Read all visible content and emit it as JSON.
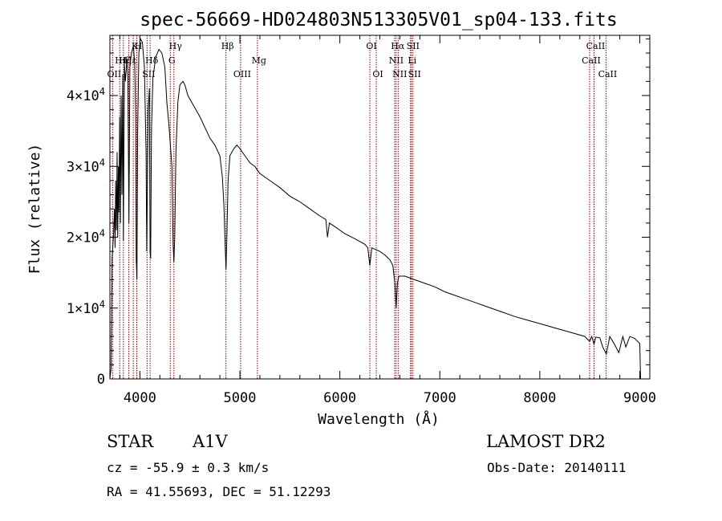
{
  "chart_data": {
    "type": "line",
    "title": "spec-56669-HD024803N513305V01_sp04-133.fits",
    "xlabel": "Wavelength (Å)",
    "ylabel": "Flux (relative)",
    "xlim": [
      3700,
      9100
    ],
    "ylim": [
      0,
      48500
    ],
    "x_ticks": [
      4000,
      5000,
      6000,
      7000,
      8000,
      9000
    ],
    "y_ticks": [
      {
        "value": 0,
        "mantissa": "0",
        "exp": ""
      },
      {
        "value": 10000,
        "mantissa": "1×10",
        "exp": "4"
      },
      {
        "value": 20000,
        "mantissa": "2×10",
        "exp": "4"
      },
      {
        "value": 30000,
        "mantissa": "3×10",
        "exp": "4"
      },
      {
        "value": 40000,
        "mantissa": "4×10",
        "exp": "4"
      }
    ],
    "grid": false,
    "series": [
      {
        "values": [
          [
            3700,
            0
          ],
          [
            3712,
            1500
          ],
          [
            3722,
            17000
          ],
          [
            3735,
            20000
          ],
          [
            3745,
            24000
          ],
          [
            3752,
            18500
          ],
          [
            3758,
            28000
          ],
          [
            3765,
            21000
          ],
          [
            3772,
            32000
          ],
          [
            3778,
            20000
          ],
          [
            3785,
            30000
          ],
          [
            3790,
            23500
          ],
          [
            3798,
            37000
          ],
          [
            3805,
            22000
          ],
          [
            3812,
            40000
          ],
          [
            3820,
            26000
          ],
          [
            3828,
            43000
          ],
          [
            3835,
            19500
          ],
          [
            3845,
            44500
          ],
          [
            3855,
            42000
          ],
          [
            3870,
            45000
          ],
          [
            3880,
            43000
          ],
          [
            3890,
            22000
          ],
          [
            3900,
            44000
          ],
          [
            3915,
            46000
          ],
          [
            3935,
            47000
          ],
          [
            3948,
            44500
          ],
          [
            3958,
            37000
          ],
          [
            3963,
            17000
          ],
          [
            3970,
            14000
          ],
          [
            3978,
            35000
          ],
          [
            3990,
            46000
          ],
          [
            4005,
            48000
          ],
          [
            4025,
            47500
          ],
          [
            4045,
            44000
          ],
          [
            4062,
            32000
          ],
          [
            4068,
            18000
          ],
          [
            4074,
            26000
          ],
          [
            4082,
            38000
          ],
          [
            4095,
            41000
          ],
          [
            4102,
            18000
          ],
          [
            4108,
            17000
          ],
          [
            4116,
            35000
          ],
          [
            4130,
            42500
          ],
          [
            4160,
            45500
          ],
          [
            4190,
            46500
          ],
          [
            4220,
            46000
          ],
          [
            4250,
            44000
          ],
          [
            4270,
            39000
          ],
          [
            4290,
            36000
          ],
          [
            4320,
            30000
          ],
          [
            4332,
            19000
          ],
          [
            4340,
            16500
          ],
          [
            4348,
            20000
          ],
          [
            4360,
            32000
          ],
          [
            4380,
            39000
          ],
          [
            4400,
            41500
          ],
          [
            4430,
            42000
          ],
          [
            4450,
            41500
          ],
          [
            4480,
            40000
          ],
          [
            4520,
            39000
          ],
          [
            4560,
            38000
          ],
          [
            4600,
            37000
          ],
          [
            4650,
            35500
          ],
          [
            4700,
            34000
          ],
          [
            4750,
            33000
          ],
          [
            4800,
            31500
          ],
          [
            4825,
            28500
          ],
          [
            4840,
            24500
          ],
          [
            4852,
            19000
          ],
          [
            4861,
            15500
          ],
          [
            4870,
            20000
          ],
          [
            4882,
            28000
          ],
          [
            4900,
            31500
          ],
          [
            4940,
            32500
          ],
          [
            4970,
            33000
          ],
          [
            5000,
            32500
          ],
          [
            5050,
            31500
          ],
          [
            5100,
            30500
          ],
          [
            5150,
            30000
          ],
          [
            5200,
            29000
          ],
          [
            5300,
            28000
          ],
          [
            5400,
            27000
          ],
          [
            5500,
            25800
          ],
          [
            5600,
            25000
          ],
          [
            5700,
            24000
          ],
          [
            5800,
            23000
          ],
          [
            5860,
            22500
          ],
          [
            5876,
            20000
          ],
          [
            5895,
            22000
          ],
          [
            5950,
            21500
          ],
          [
            6050,
            20500
          ],
          [
            6150,
            19800
          ],
          [
            6250,
            19000
          ],
          [
            6280,
            18500
          ],
          [
            6300,
            16000
          ],
          [
            6320,
            18500
          ],
          [
            6400,
            18000
          ],
          [
            6450,
            17500
          ],
          [
            6500,
            16800
          ],
          [
            6530,
            16000
          ],
          [
            6550,
            13500
          ],
          [
            6563,
            10000
          ],
          [
            6575,
            13500
          ],
          [
            6590,
            14500
          ],
          [
            6650,
            14500
          ],
          [
            6750,
            14000
          ],
          [
            6850,
            13500
          ],
          [
            6950,
            13000
          ],
          [
            7050,
            12300
          ],
          [
            7150,
            11800
          ],
          [
            7250,
            11300
          ],
          [
            7350,
            10800
          ],
          [
            7450,
            10300
          ],
          [
            7550,
            9800
          ],
          [
            7650,
            9300
          ],
          [
            7750,
            8800
          ],
          [
            7850,
            8400
          ],
          [
            7950,
            8000
          ],
          [
            8050,
            7600
          ],
          [
            8150,
            7200
          ],
          [
            8250,
            6800
          ],
          [
            8350,
            6400
          ],
          [
            8450,
            6000
          ],
          [
            8498,
            5300
          ],
          [
            8520,
            6000
          ],
          [
            8542,
            4900
          ],
          [
            8560,
            5900
          ],
          [
            8600,
            5800
          ],
          [
            8630,
            4500
          ],
          [
            8665,
            3500
          ],
          [
            8700,
            6000
          ],
          [
            8750,
            4800
          ],
          [
            8790,
            3700
          ],
          [
            8830,
            6000
          ],
          [
            8860,
            4500
          ],
          [
            8900,
            6000
          ],
          [
            8950,
            5700
          ],
          [
            9000,
            5000
          ],
          [
            9008,
            0
          ]
        ]
      }
    ],
    "lines": [
      {
        "x": 3727,
        "label": "OII",
        "row": 3
      },
      {
        "x": 3798,
        "label": "Hη",
        "row": 2
      },
      {
        "x": 3835,
        "label": "Hζ",
        "row": 2
      },
      {
        "x": 3889,
        "label": "Hε",
        "row": 2
      },
      {
        "x": 3934,
        "label": "K",
        "row": 1
      },
      {
        "x": 3969,
        "label": "H",
        "row": 1
      },
      {
        "x": 4072,
        "label": "SII",
        "row": 3
      },
      {
        "x": 4102,
        "label": "Hδ",
        "row": 2
      },
      {
        "x": 4304,
        "label": "G",
        "row": 2
      },
      {
        "x": 4340,
        "label": "Hγ",
        "row": 1
      },
      {
        "x": 4861,
        "label": "Hβ",
        "row": 1
      },
      {
        "x": 5007,
        "label": "OIII",
        "row": 3
      },
      {
        "x": 5175,
        "label": "Mg",
        "row": 2
      },
      {
        "x": 6300,
        "label": "OI",
        "row": 1
      },
      {
        "x": 6364,
        "label": "OI",
        "row": 3
      },
      {
        "x": 6548,
        "label": "NII",
        "row": 2
      },
      {
        "x": 6563,
        "label": "Hα",
        "row": 1
      },
      {
        "x": 6583,
        "label": "NII",
        "row": 3
      },
      {
        "x": 6707,
        "label": "Li",
        "row": 2
      },
      {
        "x": 6716,
        "label": "SII",
        "row": 1
      },
      {
        "x": 6731,
        "label": "SII",
        "row": 3
      },
      {
        "x": 8498,
        "label": "CaII",
        "row": 2
      },
      {
        "x": 8542,
        "label": "CaII",
        "row": 1
      },
      {
        "x": 8662,
        "label": "CaII",
        "row": 3
      }
    ],
    "line_color": "#8b0000"
  },
  "info": {
    "object_class": "STAR",
    "subclass": "A1V",
    "survey": "LAMOST DR2",
    "cz": "cz = -55.9 ± 0.3 km/s",
    "obs_date": "Obs-Date: 20140111",
    "coords": "RA =  41.55693, DEC =  51.12293"
  }
}
